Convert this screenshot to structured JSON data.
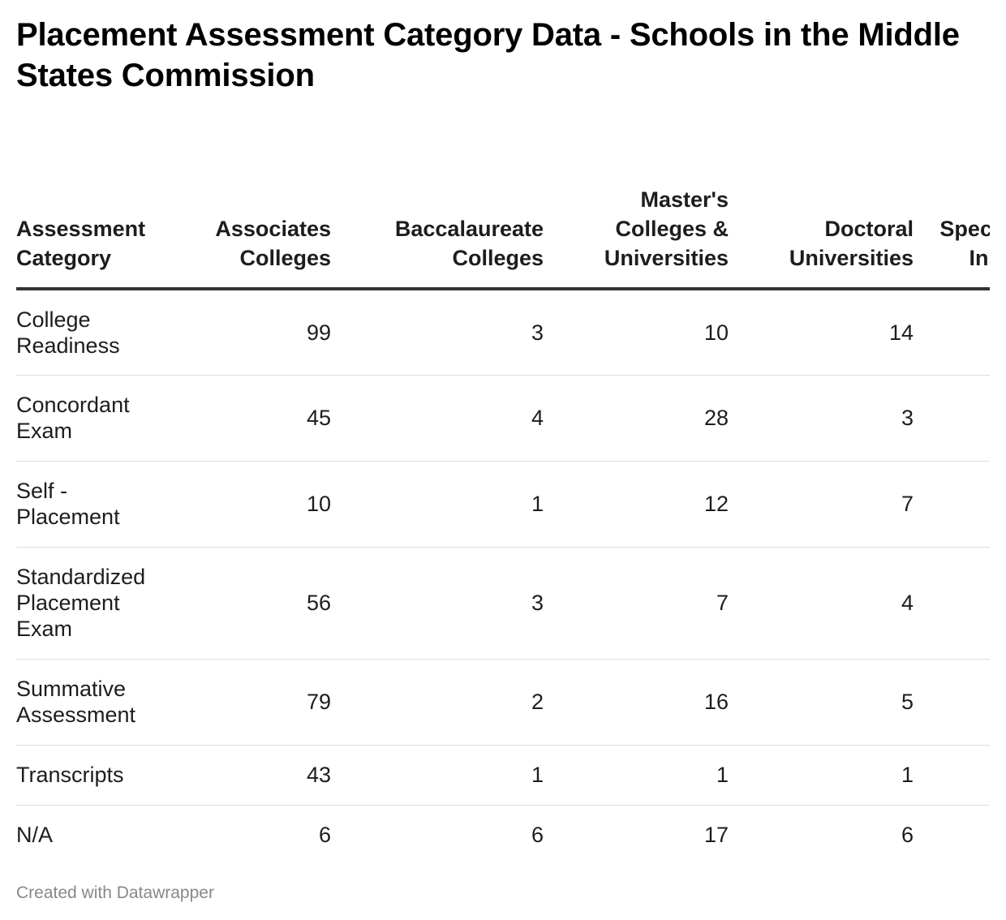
{
  "chart_data": {
    "type": "table",
    "title": "Placement Assessment Category Data - Schools in the Middle States Commission",
    "columns": [
      "Assessment Category",
      "Associates Colleges",
      "Baccalaureate Colleges",
      "Master's Colleges & Universities",
      "Doctoral Universities",
      "Special Focus Institutions"
    ],
    "rows": [
      {
        "category": "College Readiness",
        "values": [
          99,
          3,
          10,
          14,
          ""
        ]
      },
      {
        "category": "Concordant Exam",
        "values": [
          45,
          4,
          28,
          3,
          ""
        ]
      },
      {
        "category": "Self - Placement",
        "values": [
          10,
          1,
          12,
          7,
          ""
        ]
      },
      {
        "category": "Standardized Placement Exam",
        "values": [
          56,
          3,
          7,
          4,
          ""
        ]
      },
      {
        "category": "Summative Assessment",
        "values": [
          79,
          2,
          16,
          5,
          ""
        ]
      },
      {
        "category": "Transcripts",
        "values": [
          43,
          1,
          1,
          1,
          ""
        ]
      },
      {
        "category": "N/A",
        "values": [
          6,
          6,
          17,
          6,
          ""
        ]
      }
    ],
    "footer": "Created with Datawrapper"
  }
}
